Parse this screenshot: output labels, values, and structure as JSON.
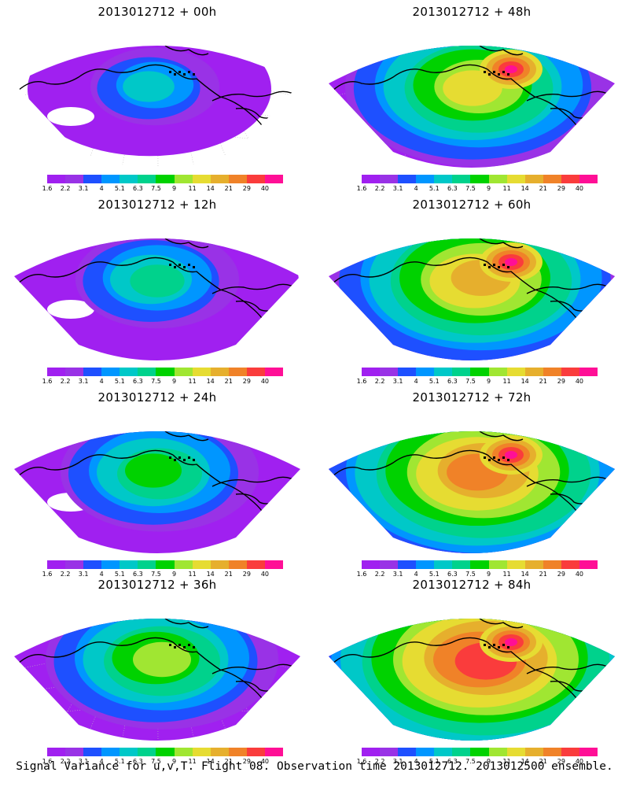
{
  "caption": "Signal Variance for u,v,T. Flight 08. Observation time 2013012712. 2013012500 ensemble.",
  "colorbar": {
    "colors": [
      "#a020f0",
      "#9932e6",
      "#1e50ff",
      "#0096ff",
      "#00c8c8",
      "#00d28c",
      "#00d200",
      "#a0e632",
      "#e6dc32",
      "#e6af2d",
      "#f08228",
      "#fa3c3c",
      "#ff0f96"
    ],
    "labels": [
      "1.6",
      "2.2",
      "3.1",
      "4",
      "5.1",
      "6.3",
      "7.5",
      "9",
      "11",
      "14",
      "21",
      "29",
      "40"
    ]
  },
  "panels": [
    {
      "id": "p00",
      "title": "2013012712 + 00h",
      "level": 1
    },
    {
      "id": "p12",
      "title": "2013012712 + 12h",
      "level": 2
    },
    {
      "id": "p24",
      "title": "2013012712 + 24h",
      "level": 3
    },
    {
      "id": "p36",
      "title": "2013012712 + 36h",
      "level": 4
    },
    {
      "id": "p48",
      "title": "2013012712 + 48h",
      "level": 5
    },
    {
      "id": "p60",
      "title": "2013012712 + 60h",
      "level": 6
    },
    {
      "id": "p72",
      "title": "2013012712 + 72h",
      "level": 7
    },
    {
      "id": "p84",
      "title": "2013012712 + 84h",
      "level": 8
    }
  ]
}
